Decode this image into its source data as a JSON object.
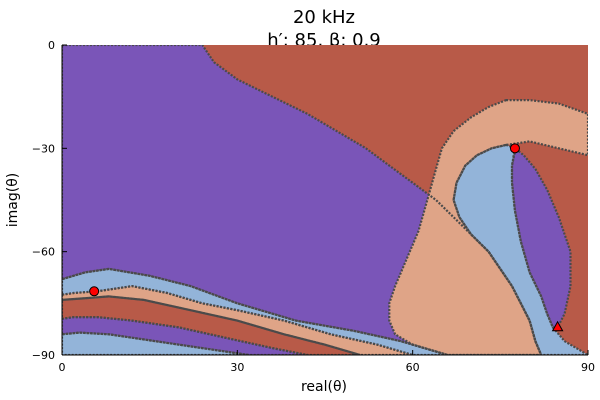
{
  "chart_data": {
    "type": "heatmap",
    "title": "20 kHz",
    "subtitle": "h′: 85, β: 0.9",
    "xlabel": "real(θ)",
    "ylabel": "imag(θ)",
    "xlim": [
      0,
      90
    ],
    "ylim": [
      -90,
      0
    ],
    "xticks": [
      "0",
      "30",
      "60",
      "90"
    ],
    "yticks": [
      "0",
      "−30",
      "−60",
      "−90"
    ],
    "xtick_values": [
      0,
      30,
      60,
      90
    ],
    "ytick_values": [
      0,
      -30,
      -60,
      -90
    ],
    "grid": false,
    "legend": "none",
    "region_colors": {
      "purple": "#7a55b8",
      "red": "#b85a48",
      "peach": "#dfa487",
      "blue": "#93b4d9",
      "boundary": "#4a4a4a"
    },
    "points": [
      {
        "x": 77.5,
        "y": -30,
        "marker": "circle",
        "color": "#ff0000"
      },
      {
        "x": 5.5,
        "y": -71.5,
        "marker": "circle",
        "color": "#ff0000"
      },
      {
        "x": 84.8,
        "y": -81.8,
        "marker": "triangle",
        "color": "#ff0000"
      }
    ],
    "regions": [
      {
        "color": "purple",
        "pts": [
          [
            0,
            0
          ],
          [
            24,
            0
          ],
          [
            26,
            5
          ],
          [
            30,
            10
          ],
          [
            36,
            15
          ],
          [
            42,
            20
          ],
          [
            47,
            25
          ],
          [
            52,
            30
          ],
          [
            56,
            35
          ],
          [
            60,
            40
          ],
          [
            64,
            45
          ],
          [
            67,
            50
          ],
          [
            70,
            55
          ],
          [
            73,
            60
          ],
          [
            75,
            65
          ],
          [
            77,
            70
          ],
          [
            78.5,
            75
          ],
          [
            80,
            80
          ],
          [
            81,
            86
          ],
          [
            82,
            90
          ],
          [
            66,
            90
          ],
          [
            62,
            88
          ],
          [
            58,
            86
          ],
          [
            50,
            83
          ],
          [
            40,
            80
          ],
          [
            30,
            75
          ],
          [
            22,
            70
          ],
          [
            15,
            67
          ],
          [
            8,
            65
          ],
          [
            4,
            66
          ],
          [
            0,
            68
          ]
        ]
      },
      {
        "color": "blue",
        "pts": [
          [
            0,
            68
          ],
          [
            4,
            66
          ],
          [
            8,
            65
          ],
          [
            15,
            67
          ],
          [
            22,
            70
          ],
          [
            30,
            75
          ],
          [
            40,
            80
          ],
          [
            50,
            83
          ],
          [
            58,
            86
          ],
          [
            62,
            88
          ],
          [
            66,
            90
          ],
          [
            60,
            90
          ],
          [
            54,
            87
          ],
          [
            46,
            84
          ],
          [
            38,
            80
          ],
          [
            30,
            77
          ],
          [
            24,
            75
          ],
          [
            18,
            72
          ],
          [
            12,
            70
          ],
          [
            6,
            71.5
          ],
          [
            2,
            72
          ],
          [
            0,
            72.5
          ]
        ]
      },
      {
        "color": "peach",
        "pts": [
          [
            0,
            72.5
          ],
          [
            2,
            72
          ],
          [
            6,
            71.5
          ],
          [
            12,
            70
          ],
          [
            18,
            72
          ],
          [
            24,
            75
          ],
          [
            30,
            77
          ],
          [
            38,
            80
          ],
          [
            46,
            84
          ],
          [
            54,
            87
          ],
          [
            60,
            90
          ],
          [
            51,
            90
          ],
          [
            45,
            87
          ],
          [
            38,
            84
          ],
          [
            30,
            80
          ],
          [
            22,
            77
          ],
          [
            14,
            74
          ],
          [
            8,
            73
          ],
          [
            4,
            73.5
          ],
          [
            0,
            74
          ]
        ]
      },
      {
        "color": "red",
        "pts": [
          [
            0,
            74
          ],
          [
            4,
            73.5
          ],
          [
            8,
            73
          ],
          [
            14,
            74
          ],
          [
            22,
            77
          ],
          [
            30,
            80
          ],
          [
            38,
            84
          ],
          [
            45,
            87
          ],
          [
            51,
            90
          ],
          [
            42,
            90
          ],
          [
            36,
            88
          ],
          [
            28,
            85
          ],
          [
            20,
            82
          ],
          [
            12,
            80
          ],
          [
            6,
            79
          ],
          [
            2,
            79
          ],
          [
            0,
            79.5
          ]
        ]
      },
      {
        "color": "purple",
        "pts": [
          [
            0,
            79.5
          ],
          [
            2,
            79
          ],
          [
            6,
            79
          ],
          [
            12,
            80
          ],
          [
            20,
            82
          ],
          [
            28,
            85
          ],
          [
            36,
            88
          ],
          [
            42,
            90
          ],
          [
            32,
            90
          ],
          [
            24,
            88
          ],
          [
            16,
            86
          ],
          [
            8,
            84
          ],
          [
            3,
            83.5
          ],
          [
            0,
            84
          ]
        ]
      },
      {
        "color": "blue",
        "pts": [
          [
            0,
            84
          ],
          [
            3,
            83.5
          ],
          [
            8,
            84
          ],
          [
            16,
            86
          ],
          [
            24,
            88
          ],
          [
            32,
            90
          ],
          [
            0,
            90
          ]
        ]
      },
      {
        "color": "peach",
        "pts": [
          [
            76,
            16
          ],
          [
            73,
            18
          ],
          [
            70,
            21
          ],
          [
            67,
            25
          ],
          [
            65,
            30
          ],
          [
            64,
            36
          ],
          [
            63,
            42
          ],
          [
            62,
            48
          ],
          [
            61,
            54
          ],
          [
            60,
            58
          ],
          [
            59,
            62
          ],
          [
            58,
            66
          ],
          [
            57,
            70
          ],
          [
            56,
            75
          ],
          [
            56,
            80
          ],
          [
            57,
            84
          ],
          [
            60,
            87
          ],
          [
            66,
            90
          ],
          [
            82,
            90
          ],
          [
            81,
            86
          ],
          [
            80,
            80
          ],
          [
            78.5,
            75
          ],
          [
            77,
            70
          ],
          [
            75,
            65
          ],
          [
            73,
            60
          ],
          [
            70,
            55
          ],
          [
            68,
            50
          ],
          [
            67,
            45
          ],
          [
            67.5,
            40
          ],
          [
            69,
            35
          ],
          [
            71,
            32
          ],
          [
            73.5,
            30
          ],
          [
            76,
            29
          ],
          [
            78,
            28.5
          ],
          [
            80,
            28
          ],
          [
            85,
            30
          ],
          [
            90,
            32
          ],
          [
            90,
            20
          ],
          [
            85,
            17
          ],
          [
            80,
            16
          ]
        ]
      },
      {
        "color": "blue",
        "pts": [
          [
            76,
            29
          ],
          [
            73.5,
            30
          ],
          [
            71,
            32
          ],
          [
            69,
            35
          ],
          [
            67.5,
            40
          ],
          [
            67,
            45
          ],
          [
            68,
            50
          ],
          [
            70,
            55
          ],
          [
            73,
            60
          ],
          [
            75,
            65
          ],
          [
            77,
            70
          ],
          [
            78.5,
            75
          ],
          [
            80,
            80
          ],
          [
            81,
            86
          ],
          [
            82,
            90
          ],
          [
            90,
            90
          ],
          [
            86,
            86
          ],
          [
            84,
            82
          ],
          [
            83,
            78
          ],
          [
            82,
            73
          ],
          [
            80,
            66
          ],
          [
            78.5,
            57
          ],
          [
            77.5,
            48
          ],
          [
            77,
            40
          ],
          [
            77,
            35
          ],
          [
            77.5,
            31
          ],
          [
            77.5,
            30
          ]
        ]
      },
      {
        "color": "purple",
        "pts": [
          [
            77.5,
            30
          ],
          [
            77,
            35
          ],
          [
            77,
            40
          ],
          [
            77.5,
            48
          ],
          [
            78.5,
            57
          ],
          [
            80,
            66
          ],
          [
            82,
            73
          ],
          [
            83,
            78
          ],
          [
            84,
            82
          ],
          [
            84.8,
            82
          ],
          [
            86,
            78
          ],
          [
            87,
            70
          ],
          [
            87,
            60
          ],
          [
            85,
            50
          ],
          [
            83,
            42
          ],
          [
            81,
            36
          ],
          [
            79,
            32
          ]
        ]
      }
    ]
  }
}
